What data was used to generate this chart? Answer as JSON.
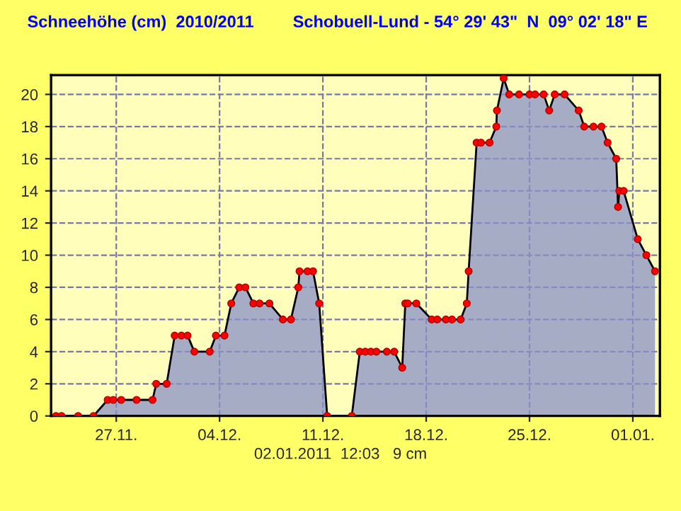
{
  "chart_data": {
    "type": "area",
    "title": "Schneehöhe (cm)  2010/2011",
    "subtitle": "Schobuell-Lund - 54° 29' 43\"  N  09° 02' 18\" E",
    "annotations": [
      "02.01.2011  12:03   9 cm"
    ],
    "x": [
      "2010-11-22T22:00",
      "2010-11-23T07:00",
      "2010-11-24T10:00",
      "2010-11-25T11:00",
      "2010-11-26T10:00",
      "2010-11-26T19:00",
      "2010-11-27T08:00",
      "2010-11-28T09:00",
      "2010-11-29T11:00",
      "2010-11-29T17:00",
      "2010-11-30T10:00",
      "2010-11-30T23:00",
      "2010-12-01T10:00",
      "2010-12-01T20:00",
      "2010-12-02T07:00",
      "2010-12-03T08:00",
      "2010-12-03T18:00",
      "2010-12-04T08:00",
      "2010-12-04T19:00",
      "2010-12-05T08:00",
      "2010-12-05T18:00",
      "2010-12-06T07:00",
      "2010-12-06T17:00",
      "2010-12-07T09:00",
      "2010-12-08T07:00",
      "2010-12-08T20:00",
      "2010-12-09T08:00",
      "2010-12-09T10:00",
      "2010-12-09T23:00",
      "2010-12-10T08:00",
      "2010-12-10T18:00",
      "2010-12-11T07:00",
      "2010-12-12T23:00",
      "2010-12-13T12:00",
      "2010-12-13T21:00",
      "2010-12-14T06:00",
      "2010-12-14T15:00",
      "2010-12-15T08:00",
      "2010-12-15T20:00",
      "2010-12-16T09:00",
      "2010-12-16T14:00",
      "2010-12-16T18:00",
      "2010-12-17T08:00",
      "2010-12-18T09:00",
      "2010-12-18T18:00",
      "2010-12-19T08:00",
      "2010-12-19T18:00",
      "2010-12-20T08:00",
      "2010-12-20T18:00",
      "2010-12-20T21:00",
      "2010-12-21T10:00",
      "2010-12-21T17:00",
      "2010-12-22T07:00",
      "2010-12-22T18:00",
      "2010-12-22T19:00",
      "2010-12-23T06:00",
      "2010-12-23T15:00",
      "2010-12-24T07:00",
      "2010-12-25T00:00",
      "2010-12-25T09:00",
      "2010-12-25T23:00",
      "2010-12-26T08:00",
      "2010-12-26T17:00",
      "2010-12-27T09:00",
      "2010-12-28T08:00",
      "2010-12-28T17:00",
      "2010-12-29T08:00",
      "2010-12-29T21:00",
      "2010-12-30T07:00",
      "2010-12-30T21:00",
      "2010-12-31T00:00",
      "2010-12-31T02:00",
      "2010-12-31T09:00",
      "2011-01-01T08:00",
      "2011-01-01T22:00",
      "2011-01-02T12:03"
    ],
    "series": [
      {
        "color": "#8a90c8",
        "values": [
          0,
          0,
          0,
          0,
          1,
          1,
          1,
          1,
          1,
          2,
          2,
          5,
          5,
          5,
          4,
          4,
          5,
          5,
          7,
          8,
          8,
          7,
          7,
          7,
          6,
          6,
          8,
          9,
          9,
          9,
          7,
          0,
          0,
          4,
          4,
          4,
          4,
          4,
          4,
          3,
          7,
          7,
          7,
          6,
          6,
          6,
          6,
          6,
          7,
          9,
          17,
          17,
          17,
          18,
          19,
          21,
          20,
          20,
          20,
          20,
          20,
          19,
          20,
          20,
          19,
          18,
          18,
          18,
          17,
          16,
          13,
          14,
          14,
          11,
          10,
          9
        ]
      }
    ],
    "xlim": [
      "2010-11-22T14:00",
      "2011-01-02T20:00"
    ],
    "xticks": [
      {
        "value": "2010-11-27",
        "label": "27.11."
      },
      {
        "value": "2010-12-04",
        "label": "04.12."
      },
      {
        "value": "2010-12-11",
        "label": "11.12."
      },
      {
        "value": "2010-12-18",
        "label": "18.12."
      },
      {
        "value": "2010-12-25",
        "label": "25.12."
      },
      {
        "value": "2011-01-01",
        "label": "01.01."
      }
    ],
    "ylim": [
      0,
      21.2
    ],
    "yticks": [
      0,
      2,
      4,
      6,
      8,
      10,
      12,
      14,
      16,
      18,
      20
    ],
    "grid": true,
    "marker": "circle",
    "line_style": "solid",
    "legend": false
  }
}
